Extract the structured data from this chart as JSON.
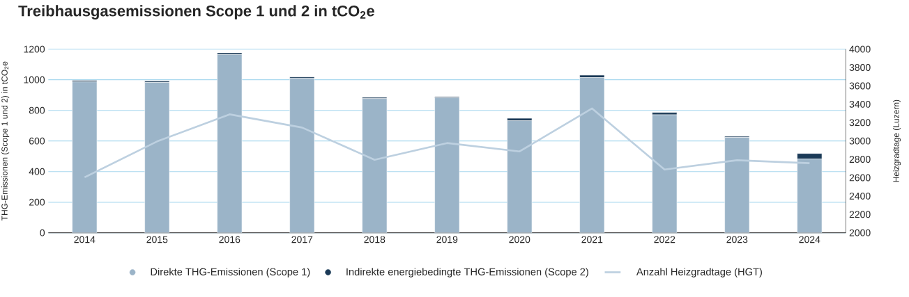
{
  "chart_data": {
    "type": "bar",
    "title": "Treibhausgasemissionen Scope 1 und 2 in tCO$_{2}$e",
    "ylabel": "THG-Emissionen (Scope 1 und 2) in tCO$_{2}$e",
    "y2label": "Heizgradtage (Luzern)",
    "categories": [
      "2014",
      "2015",
      "2016",
      "2017",
      "2018",
      "2019",
      "2020",
      "2021",
      "2022",
      "2023",
      "2024"
    ],
    "stacked": true,
    "series": [
      {
        "name": "Direkte THG-Emissionen (Scope 1)",
        "color": "#9bb4c8",
        "values": [
          986,
          983,
          1165,
          1009,
          877,
          882,
          732,
          1014,
          771,
          623,
          482
        ]
      },
      {
        "name": "Indirekte energiebedingte THG-Emissionen (Scope 2)",
        "color": "#1b3a57",
        "values": [
          9,
          9,
          11,
          9,
          8,
          7,
          16,
          16,
          15,
          7,
          36
        ]
      },
      {
        "name": "Anzahl Heizgradtage (HGT)",
        "type": "line",
        "axis": "y2",
        "color": "#bdd0e0",
        "values": [
          2604,
          2995,
          3290,
          3146,
          2795,
          2977,
          2886,
          3354,
          2689,
          2790,
          2758
        ]
      }
    ],
    "ylim": [
      0,
      1200
    ],
    "yticks": [
      0,
      200,
      400,
      600,
      800,
      1000,
      1200
    ],
    "y2lim": [
      2000,
      4000
    ],
    "y2ticks": [
      2000,
      2200,
      2400,
      2600,
      2800,
      3000,
      3200,
      3400,
      3600,
      3800,
      4000
    ],
    "grid": "y",
    "legend": "bottom"
  }
}
